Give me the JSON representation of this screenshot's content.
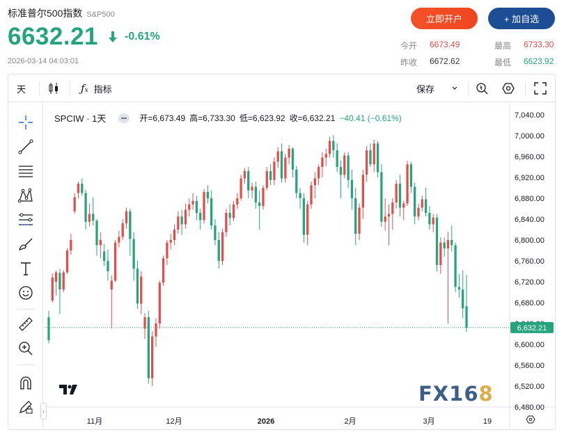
{
  "header": {
    "title": "标准普尔500指数",
    "symbol": "S&P500",
    "price": "6632.21",
    "change": "-0.61%",
    "timestamp": "2026-03-14 04:03:01",
    "open_account_label": "立即开户",
    "add_watchlist_label": "+ 加自选"
  },
  "stats": {
    "open_label": "今开",
    "open": "6673.49",
    "high_label": "最高",
    "high": "6733.30",
    "prev_close_label": "昨收",
    "prev_close": "6672.62",
    "low_label": "最低",
    "low": "6623.92"
  },
  "toolbar": {
    "interval": "天",
    "indicators_label": "指标",
    "save_label": "保存"
  },
  "legend": {
    "symbol": "SPCIW · 1天",
    "open": "开=6,673.49",
    "high": "高=6,733.30",
    "low": "低=6,623.92",
    "close": "收=6,632.21",
    "change": "−40.41 (−0.61%)"
  },
  "watermark": {
    "main": "FX16",
    "accent": "8"
  },
  "colors": {
    "up": "#e04e4e",
    "down": "#26a47c",
    "accent": "#f4512a",
    "brand": "#1d4e95"
  },
  "icons": [
    "crosshair-icon",
    "trend-line-icon",
    "fib-icon",
    "pattern-icon",
    "projection-icon",
    "brush-icon",
    "text-icon",
    "emoji-icon",
    "ruler-icon",
    "zoom-in-icon",
    "magnet-icon",
    "lock-pen-icon"
  ],
  "chart_data": {
    "type": "candlestick",
    "y_ticks": [
      "7,040.00",
      "7,000.00",
      "6,960.00",
      "6,920.00",
      "6,880.00",
      "6,840.00",
      "6,800.00",
      "6,760.00",
      "6,720.00",
      "6,680.00",
      "6,640.00",
      "6,600.00",
      "6,560.00",
      "6,520.00",
      "6,480.00"
    ],
    "x_ticks": [
      "11月",
      "12月",
      "2026",
      "2月",
      "3月",
      "19"
    ],
    "ylim": [
      6464,
      7056
    ],
    "last_price_label": "6,632.21",
    "last_price": 6632.21,
    "ohlc": [
      [
        6652,
        6664,
        6602,
        6608
      ],
      [
        6684,
        6736,
        6680,
        6728
      ],
      [
        6720,
        6742,
        6694,
        6738
      ],
      [
        6737,
        6745,
        6658,
        6705
      ],
      [
        6705,
        6742,
        6700,
        6738
      ],
      [
        6738,
        6784,
        6735,
        6780
      ],
      [
        6780,
        6812,
        6772,
        6800
      ],
      [
        6855,
        6890,
        6850,
        6882
      ],
      [
        6890,
        6912,
        6880,
        6908
      ],
      [
        6908,
        6918,
        6885,
        6890
      ],
      [
        6890,
        6896,
        6820,
        6835
      ],
      [
        6835,
        6870,
        6826,
        6850
      ],
      [
        6850,
        6882,
        6828,
        6837
      ],
      [
        6837,
        6840,
        6770,
        6790
      ],
      [
        6790,
        6815,
        6765,
        6800
      ],
      [
        6778,
        6792,
        6750,
        6760
      ],
      [
        6760,
        6782,
        6722,
        6740
      ],
      [
        6705,
        6732,
        6630,
        6722
      ],
      [
        6722,
        6800,
        6720,
        6795
      ],
      [
        6795,
        6818,
        6786,
        6806
      ],
      [
        6806,
        6840,
        6800,
        6832
      ],
      [
        6832,
        6862,
        6822,
        6855
      ],
      [
        6855,
        6860,
        6770,
        6802
      ],
      [
        6802,
        6815,
        6722,
        6745
      ],
      [
        6745,
        6760,
        6668,
        6678
      ],
      [
        6678,
        6740,
        6658,
        6730
      ],
      [
        6630,
        6660,
        6610,
        6652
      ],
      [
        6652,
        6664,
        6525,
        6535
      ],
      [
        6535,
        6625,
        6520,
        6615
      ],
      [
        6615,
        6650,
        6595,
        6640
      ],
      [
        6640,
        6722,
        6630,
        6718
      ],
      [
        6718,
        6770,
        6712,
        6765
      ],
      [
        6765,
        6800,
        6752,
        6795
      ],
      [
        6795,
        6812,
        6782,
        6800
      ],
      [
        6800,
        6830,
        6790,
        6820
      ],
      [
        6820,
        6855,
        6812,
        6845
      ],
      [
        6845,
        6858,
        6810,
        6830
      ],
      [
        6830,
        6870,
        6822,
        6858
      ],
      [
        6858,
        6880,
        6845,
        6868
      ],
      [
        6868,
        6890,
        6858,
        6875
      ],
      [
        6875,
        6885,
        6838,
        6852
      ],
      [
        6852,
        6860,
        6820,
        6838
      ],
      [
        6838,
        6898,
        6832,
        6892
      ],
      [
        6892,
        6905,
        6870,
        6880
      ],
      [
        6880,
        6895,
        6820,
        6828
      ],
      [
        6828,
        6840,
        6790,
        6800
      ],
      [
        6800,
        6815,
        6745,
        6760
      ],
      [
        6760,
        6822,
        6752,
        6815
      ],
      [
        6815,
        6860,
        6806,
        6852
      ],
      [
        6852,
        6868,
        6828,
        6842
      ],
      [
        6842,
        6875,
        6836,
        6868
      ],
      [
        6868,
        6890,
        6860,
        6880
      ],
      [
        6880,
        6925,
        6875,
        6918
      ],
      [
        6918,
        6938,
        6908,
        6932
      ],
      [
        6932,
        6940,
        6880,
        6895
      ],
      [
        6895,
        6910,
        6880,
        6902
      ],
      [
        6902,
        6912,
        6860,
        6872
      ],
      [
        6872,
        6895,
        6820,
        6865
      ],
      [
        6865,
        6905,
        6858,
        6900
      ],
      [
        6900,
        6940,
        6895,
        6932
      ],
      [
        6932,
        6945,
        6905,
        6915
      ],
      [
        6915,
        6958,
        6905,
        6950
      ],
      [
        6950,
        6978,
        6938,
        6970
      ],
      [
        6970,
        6985,
        6910,
        6918
      ],
      [
        6918,
        6965,
        6910,
        6958
      ],
      [
        6958,
        6982,
        6945,
        6975
      ],
      [
        6975,
        6978,
        6920,
        6935
      ],
      [
        6935,
        6942,
        6880,
        6890
      ],
      [
        6890,
        6900,
        6860,
        6880
      ],
      [
        6880,
        6890,
        6795,
        6810
      ],
      [
        6810,
        6875,
        6790,
        6868
      ],
      [
        6868,
        6912,
        6860,
        6905
      ],
      [
        6905,
        6930,
        6880,
        6918
      ],
      [
        6918,
        6945,
        6905,
        6940
      ],
      [
        6940,
        6968,
        6920,
        6958
      ],
      [
        6958,
        6975,
        6942,
        6965
      ],
      [
        6965,
        6998,
        6958,
        6990
      ],
      [
        6990,
        7001,
        6958,
        6972
      ],
      [
        6972,
        6985,
        6930,
        6940
      ],
      [
        6940,
        6952,
        6880,
        6925
      ],
      [
        6925,
        6968,
        6918,
        6962
      ],
      [
        6962,
        6968,
        6900,
        6915
      ],
      [
        6915,
        6935,
        6858,
        6880
      ],
      [
        6880,
        6900,
        6790,
        6812
      ],
      [
        6812,
        6870,
        6800,
        6862
      ],
      [
        6862,
        6935,
        6840,
        6925
      ],
      [
        6925,
        6980,
        6912,
        6972
      ],
      [
        6972,
        6985,
        6940,
        6945
      ],
      [
        6945,
        6992,
        6930,
        6985
      ],
      [
        6985,
        6990,
        6920,
        6930
      ],
      [
        6930,
        6945,
        6825,
        6835
      ],
      [
        6835,
        6880,
        6818,
        6845
      ],
      [
        6845,
        6868,
        6790,
        6850
      ],
      [
        6850,
        6880,
        6820,
        6872
      ],
      [
        6872,
        6915,
        6860,
        6908
      ],
      [
        6908,
        6925,
        6845,
        6862
      ],
      [
        6862,
        6875,
        6838,
        6870
      ],
      [
        6870,
        6952,
        6865,
        6945
      ],
      [
        6945,
        6950,
        6890,
        6902
      ],
      [
        6902,
        6910,
        6830,
        6845
      ],
      [
        6845,
        6870,
        6838,
        6862
      ],
      [
        6862,
        6885,
        6855,
        6878
      ],
      [
        6878,
        6900,
        6845,
        6852
      ],
      [
        6852,
        6865,
        6820,
        6830
      ],
      [
        6830,
        6850,
        6815,
        6843
      ],
      [
        6843,
        6850,
        6740,
        6752
      ],
      [
        6752,
        6805,
        6735,
        6795
      ],
      [
        6795,
        6805,
        6768,
        6784
      ],
      [
        6784,
        6815,
        6640,
        6800
      ],
      [
        6800,
        6828,
        6778,
        6790
      ],
      [
        6790,
        6795,
        6700,
        6710
      ],
      [
        6710,
        6735,
        6690,
        6705
      ],
      [
        6705,
        6742,
        6650,
        6669
      ],
      [
        6673,
        6733,
        6624,
        6632
      ]
    ]
  }
}
